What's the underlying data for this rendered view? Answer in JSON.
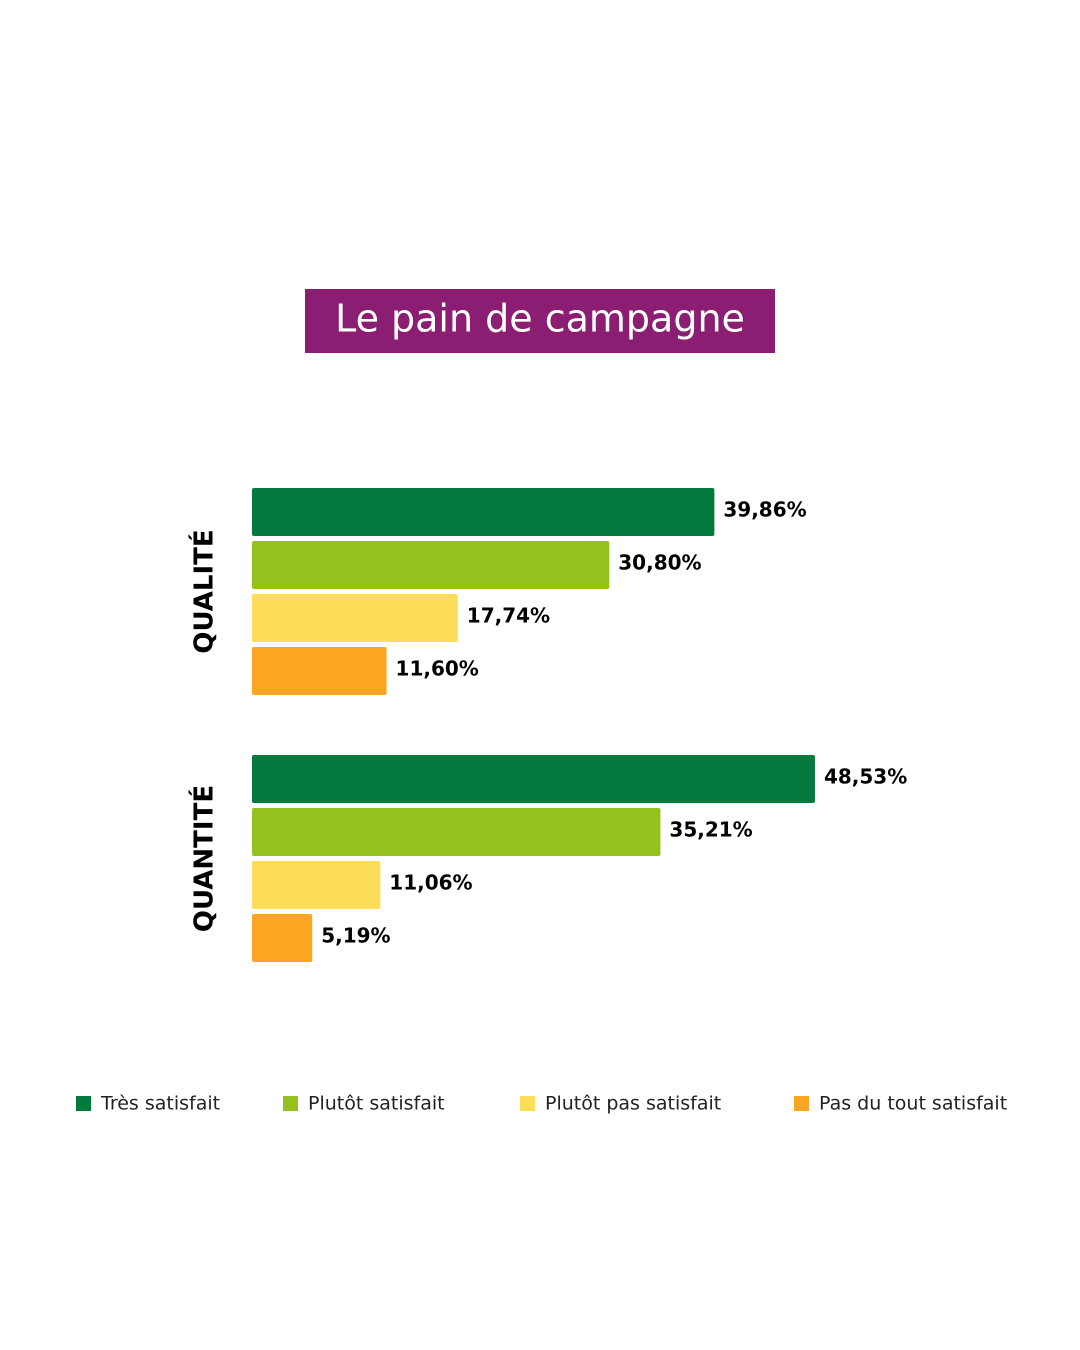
{
  "chart_data": {
    "type": "hbar-grouped",
    "title": "Le pain de campagne",
    "categories": [
      "QUALITÉ",
      "QUANTITÉ"
    ],
    "xlim": [
      0,
      50
    ],
    "series": [
      {
        "name": "Très satisfait",
        "color": "#027a3e",
        "values": [
          39.86,
          48.53
        ],
        "value_labels": [
          "39,86%",
          "48,53%"
        ]
      },
      {
        "name": "Plutôt satisfait",
        "color": "#95c11f",
        "values": [
          30.8,
          35.21
        ],
        "value_labels": [
          "30,80%",
          "35,21%"
        ]
      },
      {
        "name": "Plutôt pas satisfait",
        "color": "#ffdc5a",
        "values": [
          17.74,
          11.06
        ],
        "value_labels": [
          "17,74%",
          "11,06%"
        ]
      },
      {
        "name": "Pas du tout satisfait",
        "color": "#fca522",
        "values": [
          11.6,
          5.19
        ],
        "value_labels": [
          "11,60%",
          "5,19%"
        ]
      }
    ]
  }
}
